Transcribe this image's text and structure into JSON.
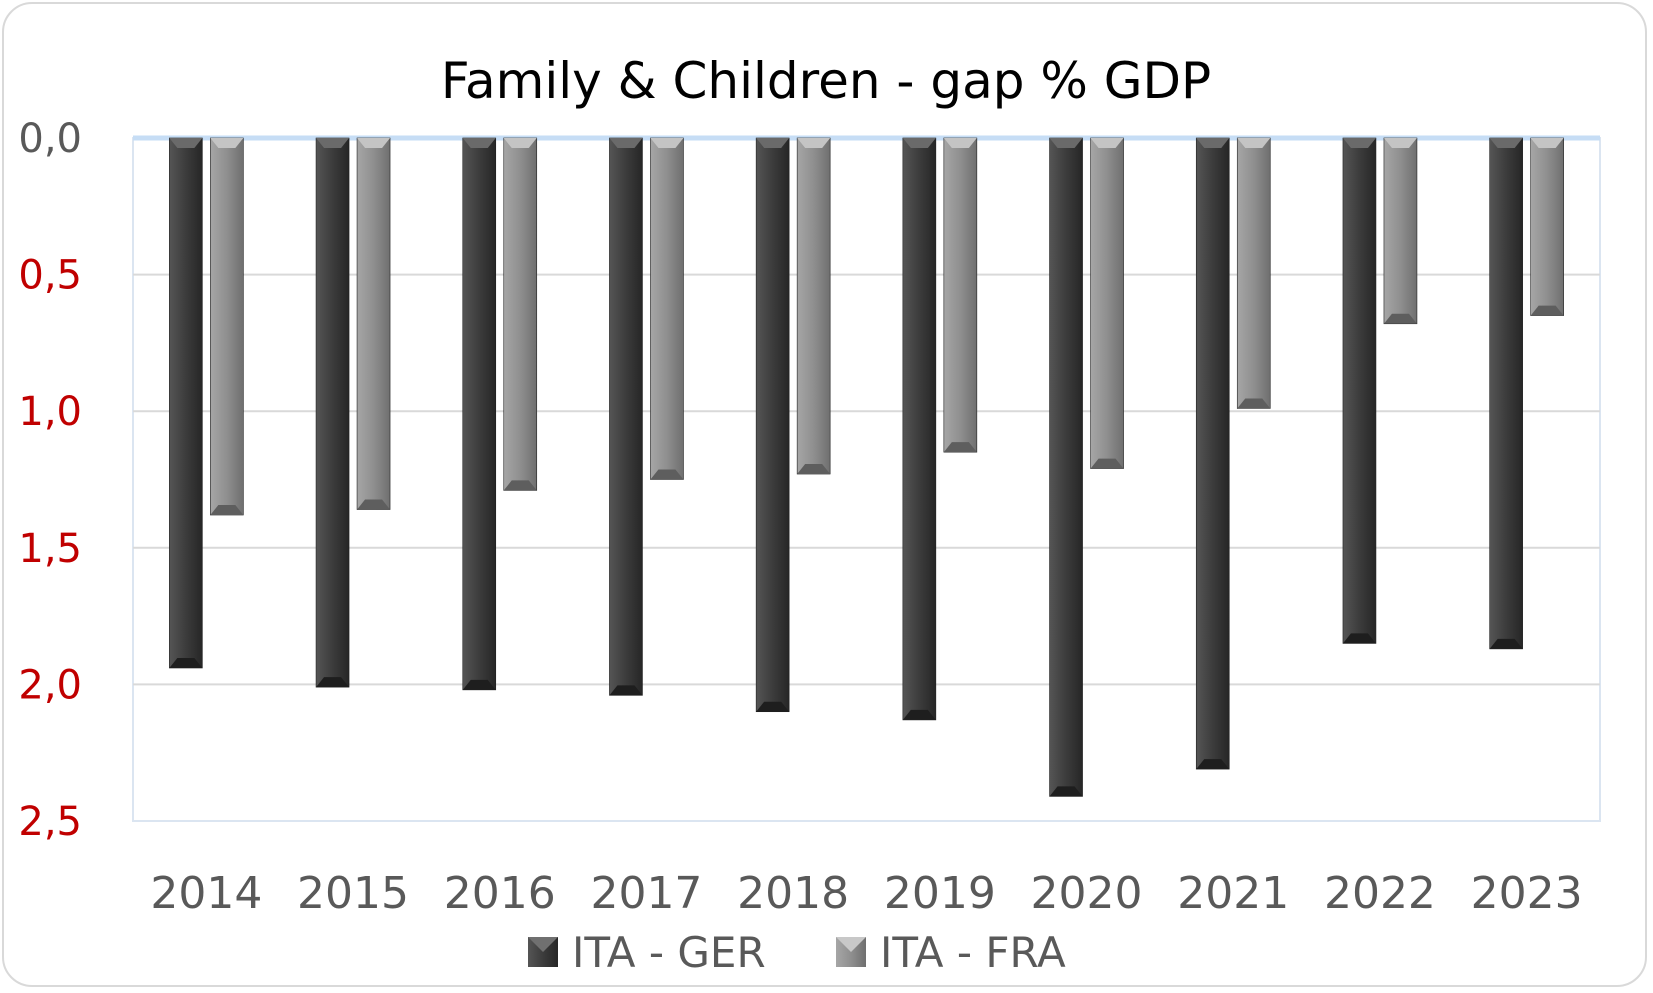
{
  "chart_data": {
    "type": "bar",
    "title": "Family & Children - gap % GDP",
    "xlabel": "",
    "ylabel": "",
    "categories": [
      "2014",
      "2015",
      "2016",
      "2017",
      "2018",
      "2019",
      "2020",
      "2021",
      "2022",
      "2023"
    ],
    "series": [
      {
        "name": "ITA - GER",
        "values": [
          1.94,
          2.01,
          2.02,
          2.04,
          2.1,
          2.13,
          2.41,
          2.31,
          1.85,
          1.87
        ],
        "color": "#3a3a3a"
      },
      {
        "name": "ITA - FRA",
        "values": [
          1.38,
          1.36,
          1.29,
          1.25,
          1.23,
          1.15,
          1.21,
          0.99,
          0.68,
          0.65
        ],
        "color": "#8c8c8c"
      }
    ],
    "ylim": [
      0,
      2.5
    ],
    "y_axis_reversed": true,
    "y_ticks": [
      "0,0",
      "0,5",
      "1,0",
      "1,5",
      "2,0",
      "2,5"
    ],
    "y_tick_colors": [
      "#595959",
      "#c00000",
      "#c00000",
      "#c00000",
      "#c00000",
      "#c00000"
    ],
    "grid": true,
    "legend_position": "bottom"
  }
}
